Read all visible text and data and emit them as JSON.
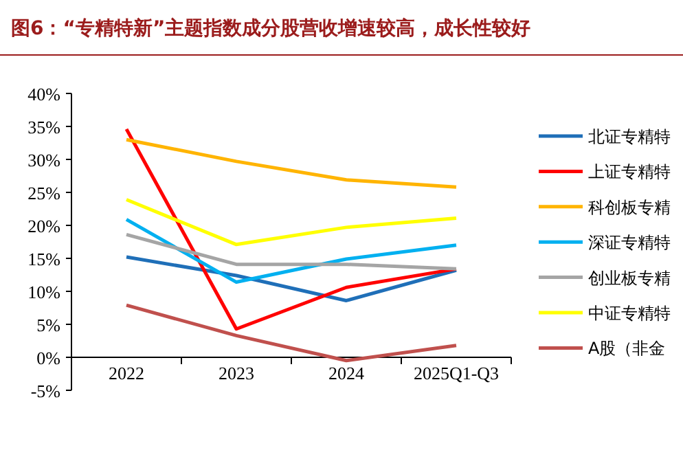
{
  "chart_data": {
    "type": "line",
    "title": "图6：“专精特新”主题指数成分股营收增速较高，成长性较好",
    "categories": [
      "2022",
      "2023",
      "2024",
      "2025Q1-Q3"
    ],
    "series": [
      {
        "name": "北证专精特",
        "color": "#1f6fb8",
        "values": [
          15.2,
          12.4,
          8.6,
          13.2
        ]
      },
      {
        "name": "上证专精特",
        "color": "#ff0000",
        "values": [
          34.6,
          4.3,
          10.6,
          13.4
        ]
      },
      {
        "name": "科创板专精",
        "color": "#ffb400",
        "values": [
          33.0,
          29.7,
          26.9,
          25.8
        ]
      },
      {
        "name": "深证专精特",
        "color": "#00b0f0",
        "values": [
          20.9,
          11.4,
          14.9,
          17.0
        ]
      },
      {
        "name": "创业板专精",
        "color": "#a5a5a5",
        "values": [
          18.6,
          14.1,
          14.1,
          13.4
        ]
      },
      {
        "name": "中证专精特",
        "color": "#ffff00",
        "values": [
          23.9,
          17.1,
          19.7,
          21.1
        ]
      },
      {
        "name": "A股（非金",
        "color": "#c0504d",
        "values": [
          7.9,
          3.3,
          -0.5,
          1.8
        ]
      }
    ],
    "ylim": [
      -5,
      40
    ],
    "yticks": [
      {
        "value": -5,
        "label": "-5%"
      },
      {
        "value": 0,
        "label": "0%"
      },
      {
        "value": 5,
        "label": "5%"
      },
      {
        "value": 10,
        "label": "10%"
      },
      {
        "value": 15,
        "label": "15%"
      },
      {
        "value": 20,
        "label": "20%"
      },
      {
        "value": 25,
        "label": "25%"
      },
      {
        "value": 30,
        "label": "30%"
      },
      {
        "value": 35,
        "label": "35%"
      },
      {
        "value": 40,
        "label": "40%"
      }
    ],
    "grid": false,
    "legend": "right",
    "marker": "none",
    "line_style": "solid"
  }
}
